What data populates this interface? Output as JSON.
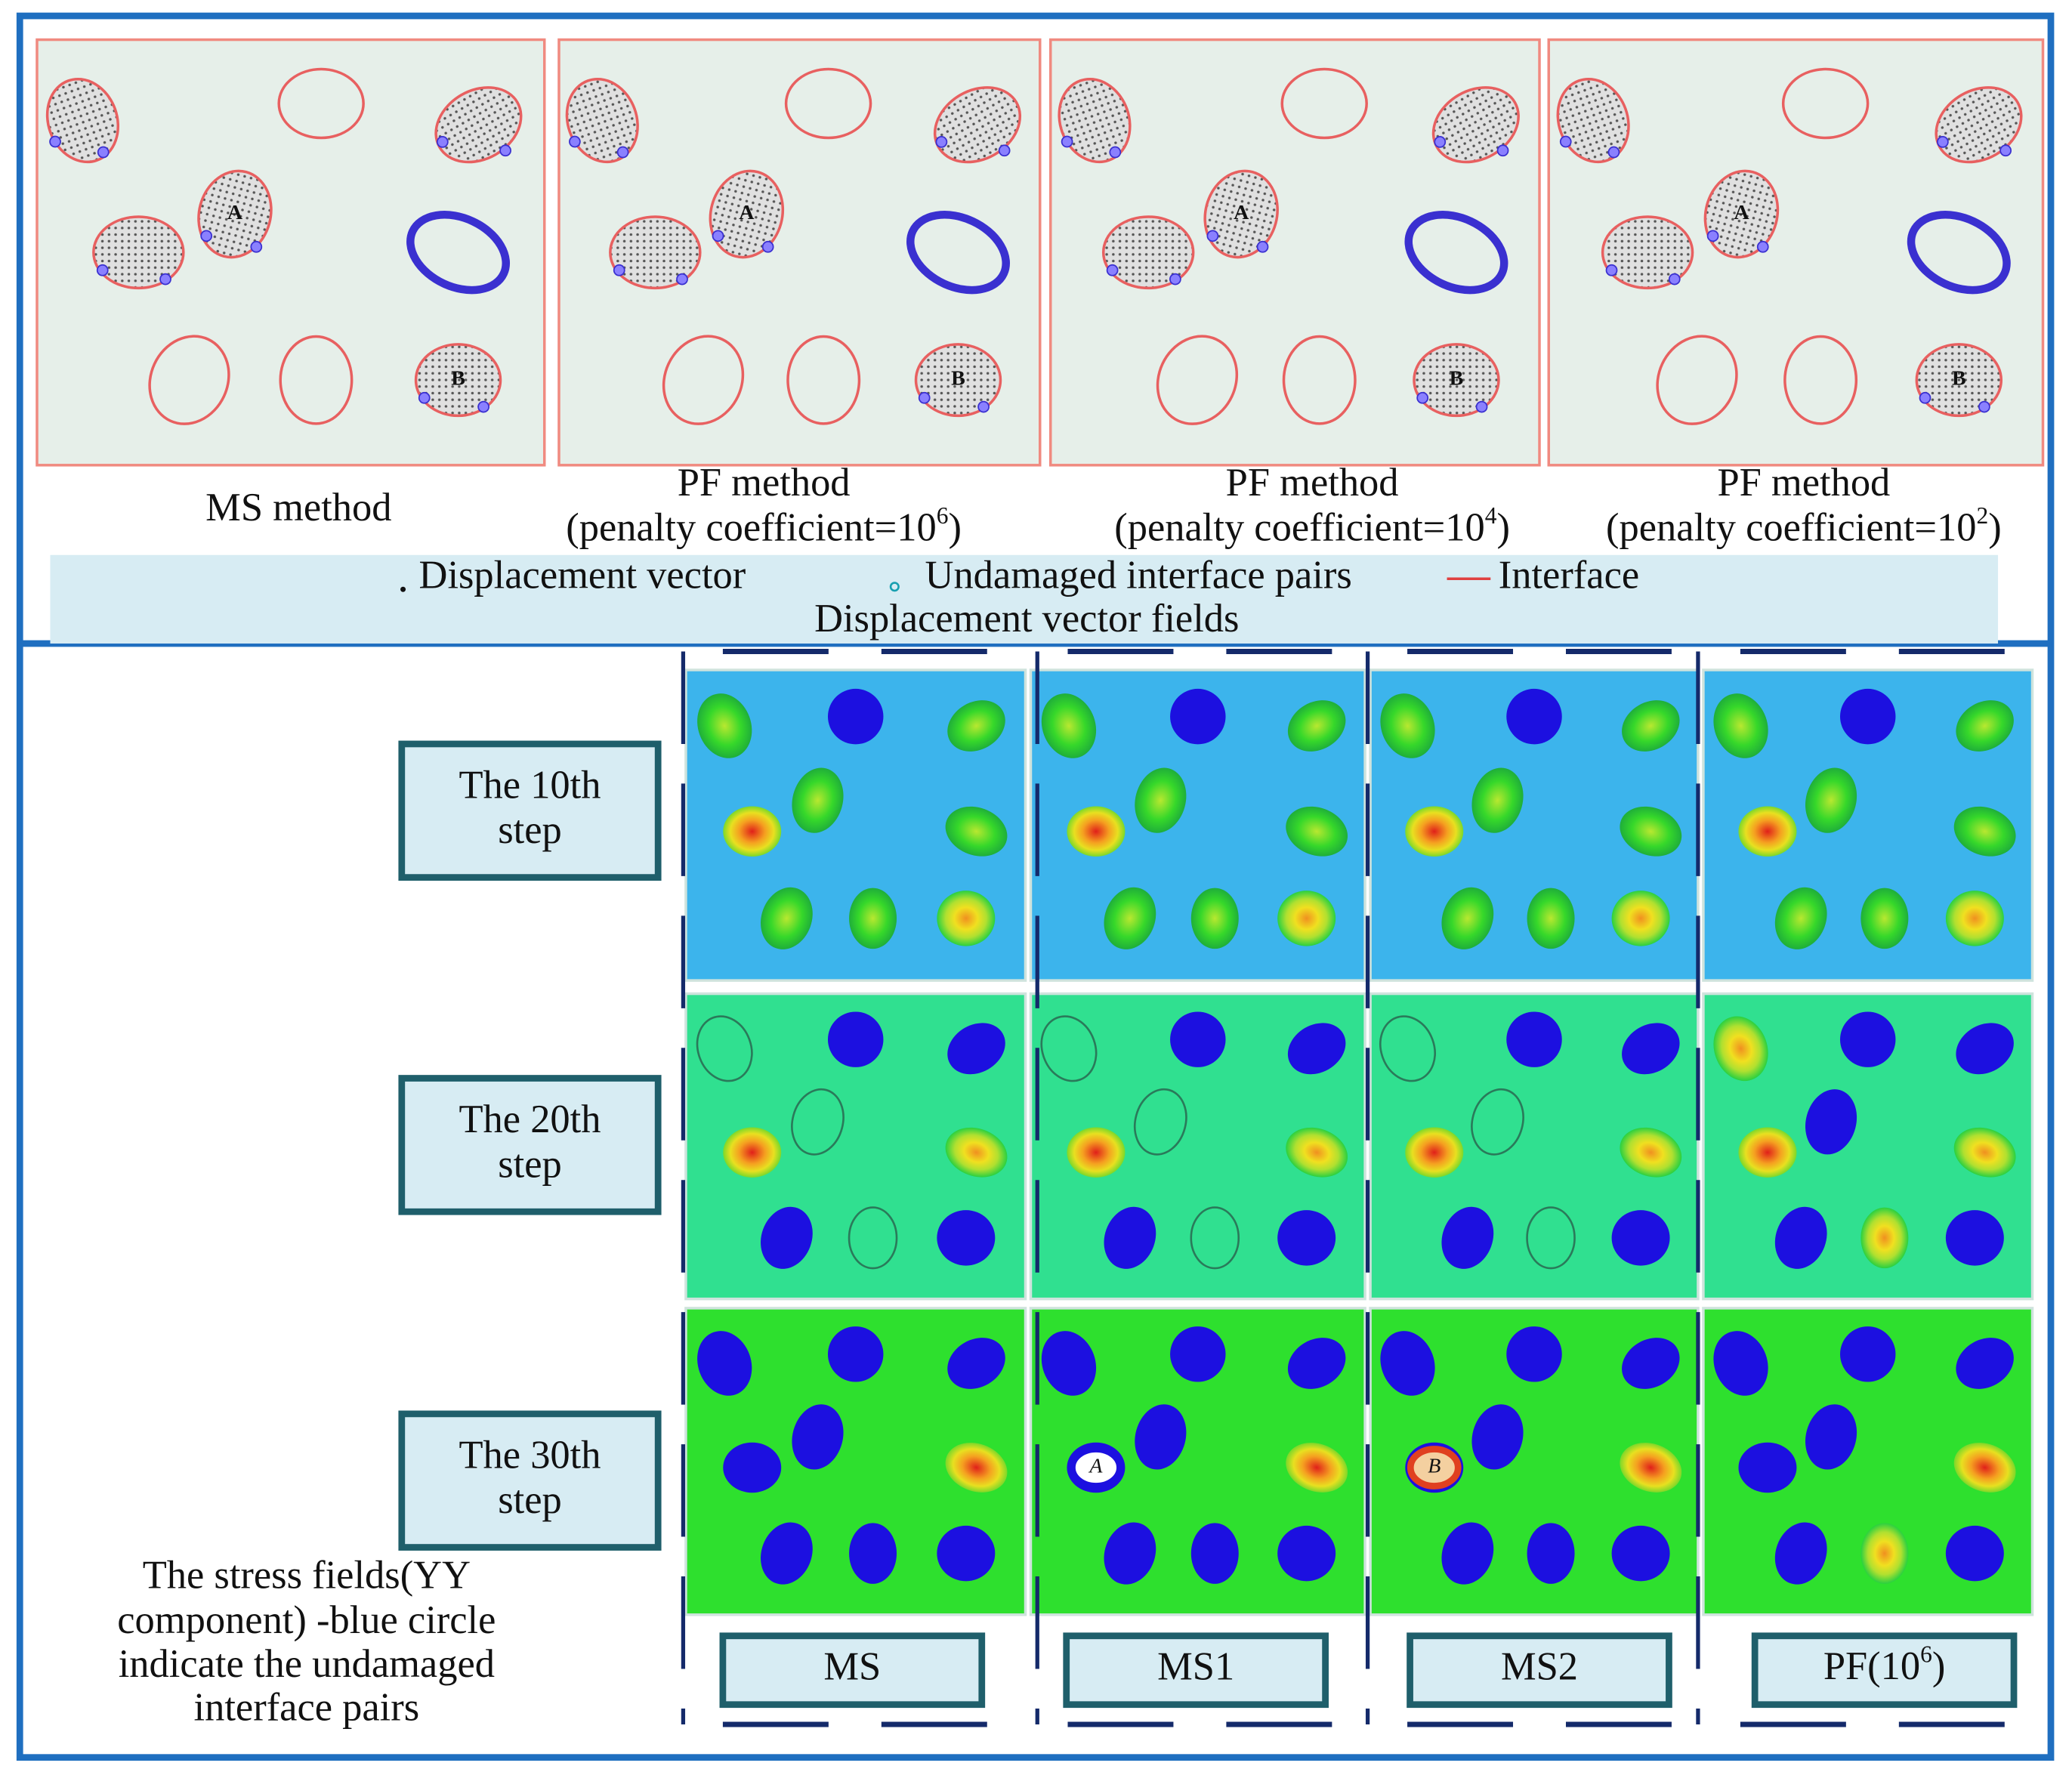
{
  "top": {
    "panels": [
      {
        "caption": "MS method"
      },
      {
        "caption": "PF method",
        "coef": "(penalty coefficient=10",
        "exp": "6",
        "close": ")"
      },
      {
        "caption": "PF method",
        "coef": "(penalty coefficient=10",
        "exp": "4",
        "close": ")"
      },
      {
        "caption": "PF method",
        "coef": "(penalty coefficient=10",
        "exp": "2",
        "close": ")"
      }
    ],
    "legend": {
      "items": [
        "Displacement vector",
        "Undamaged interface pairs",
        "Interface"
      ],
      "title": "Displacement vector fields"
    }
  },
  "marker_labels": [
    "A",
    "B"
  ],
  "bottom": {
    "rows": [
      {
        "line1": "The 10th",
        "line2": "step"
      },
      {
        "line1": "The 20th",
        "line2": "step"
      },
      {
        "line1": "The 30th",
        "line2": "step"
      }
    ],
    "columns": [
      {
        "label": "MS"
      },
      {
        "label": "MS1"
      },
      {
        "label": "MS2"
      },
      {
        "label": "PF(10",
        "exp": "6",
        "close": ")"
      }
    ],
    "caption": [
      "The stress fields(YY",
      "component) -blue circle",
      "indicate the undamaged",
      "interface pairs"
    ]
  }
}
